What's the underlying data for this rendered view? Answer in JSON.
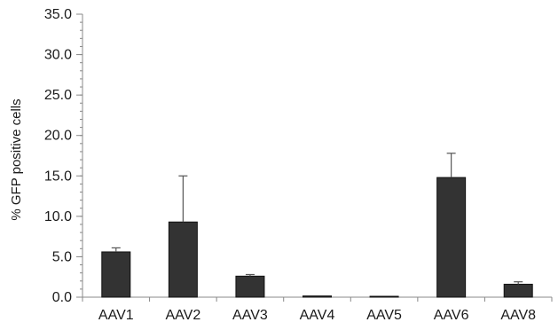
{
  "chart_data": {
    "type": "bar",
    "title": "",
    "xlabel": "",
    "ylabel": "% GFP positive cells",
    "ylim": [
      0,
      35
    ],
    "yticks": [
      "35.0",
      "30.0",
      "25.0",
      "20.0",
      "15.0",
      "10.0",
      "5.0",
      "0.0"
    ],
    "ytick_values": [
      35,
      30,
      25,
      20,
      15,
      10,
      5,
      0
    ],
    "minor_tick_step": 1,
    "grid": false,
    "bar_color": "#333333",
    "axis_color": "#888888",
    "categories": [
      "AAV1",
      "AAV2",
      "AAV3",
      "AAV4",
      "AAV5",
      "AAV6",
      "AAV8"
    ],
    "values": [
      5.6,
      9.3,
      2.6,
      0.15,
      0.05,
      14.8,
      1.6
    ],
    "errors": [
      0.5,
      5.7,
      0.2,
      0.02,
      0.02,
      3.0,
      0.3
    ]
  }
}
